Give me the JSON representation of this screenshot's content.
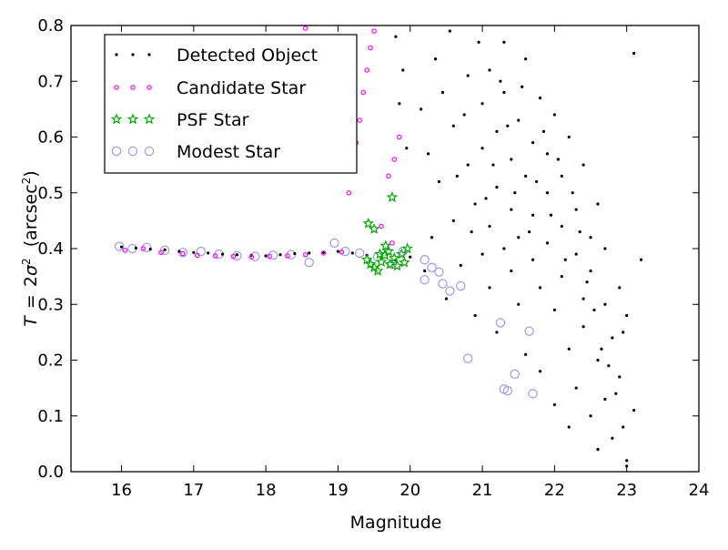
{
  "chart_data": {
    "type": "scatter",
    "title": "",
    "xlabel": "Magnitude",
    "ylabel": "T = 2σ² (arcsec²)",
    "ylabel_parts": {
      "lhs": "T",
      "eq": "=",
      "coef": "2",
      "sym": "σ",
      "sup": "2",
      "unit": "(arcsec",
      "unit_sup": "2",
      "unit_close": ")"
    },
    "xlim": [
      15.3,
      24
    ],
    "ylim": [
      0,
      0.8
    ],
    "x_ticks": [
      "16",
      "17",
      "18",
      "19",
      "20",
      "21",
      "22",
      "23",
      "24"
    ],
    "y_ticks": [
      "0.0",
      "0.1",
      "0.2",
      "0.3",
      "0.4",
      "0.5",
      "0.6",
      "0.7",
      "0.8"
    ],
    "grid": false,
    "legend_position": "top-left",
    "series": [
      {
        "name": "Detected Object",
        "marker": "dot",
        "color": "#000000",
        "points_note": "dense cloud",
        "points": [
          [
            16.0,
            0.403
          ],
          [
            16.2,
            0.401
          ],
          [
            16.4,
            0.399
          ],
          [
            16.6,
            0.398
          ],
          [
            16.8,
            0.395
          ],
          [
            17.0,
            0.393
          ],
          [
            17.2,
            0.392
          ],
          [
            17.4,
            0.39
          ],
          [
            17.6,
            0.389
          ],
          [
            17.8,
            0.388
          ],
          [
            18.0,
            0.387
          ],
          [
            18.2,
            0.389
          ],
          [
            18.4,
            0.391
          ],
          [
            18.6,
            0.392
          ],
          [
            18.8,
            0.393
          ],
          [
            19.0,
            0.395
          ],
          [
            19.2,
            0.392
          ],
          [
            19.4,
            0.388
          ],
          [
            19.6,
            0.383
          ],
          [
            19.8,
            0.379
          ],
          [
            20.0,
            0.385
          ],
          [
            20.2,
            0.36
          ],
          [
            20.3,
            0.42
          ],
          [
            20.4,
            0.52
          ],
          [
            20.5,
            0.31
          ],
          [
            20.6,
            0.45
          ],
          [
            20.6,
            0.62
          ],
          [
            20.7,
            0.37
          ],
          [
            20.8,
            0.55
          ],
          [
            20.8,
            0.71
          ],
          [
            20.9,
            0.28
          ],
          [
            20.9,
            0.48
          ],
          [
            21.0,
            0.39
          ],
          [
            21.0,
            0.58
          ],
          [
            21.0,
            0.66
          ],
          [
            21.1,
            0.33
          ],
          [
            21.1,
            0.44
          ],
          [
            21.1,
            0.72
          ],
          [
            21.2,
            0.51
          ],
          [
            21.2,
            0.61
          ],
          [
            21.2,
            0.25
          ],
          [
            21.3,
            0.4
          ],
          [
            21.3,
            0.68
          ],
          [
            21.3,
            0.77
          ],
          [
            21.4,
            0.36
          ],
          [
            21.4,
            0.47
          ],
          [
            21.4,
            0.56
          ],
          [
            21.5,
            0.3
          ],
          [
            21.5,
            0.63
          ],
          [
            21.5,
            0.42
          ],
          [
            21.6,
            0.53
          ],
          [
            21.6,
            0.74
          ],
          [
            21.6,
            0.21
          ],
          [
            21.7,
            0.38
          ],
          [
            21.7,
            0.59
          ],
          [
            21.7,
            0.46
          ],
          [
            21.8,
            0.33
          ],
          [
            21.8,
            0.67
          ],
          [
            21.8,
            0.18
          ],
          [
            21.9,
            0.5
          ],
          [
            21.9,
            0.41
          ],
          [
            21.9,
            0.57
          ],
          [
            22.0,
            0.29
          ],
          [
            22.0,
            0.64
          ],
          [
            22.0,
            0.12
          ],
          [
            22.1,
            0.44
          ],
          [
            22.1,
            0.35
          ],
          [
            22.1,
            0.53
          ],
          [
            22.2,
            0.22
          ],
          [
            22.2,
            0.6
          ],
          [
            22.2,
            0.08
          ],
          [
            22.3,
            0.39
          ],
          [
            22.3,
            0.47
          ],
          [
            22.3,
            0.15
          ],
          [
            22.4,
            0.31
          ],
          [
            22.4,
            0.55
          ],
          [
            22.4,
            0.26
          ],
          [
            22.5,
            0.42
          ],
          [
            22.5,
            0.1
          ],
          [
            22.5,
            0.36
          ],
          [
            22.6,
            0.2
          ],
          [
            22.6,
            0.48
          ],
          [
            22.6,
            0.04
          ],
          [
            22.7,
            0.3
          ],
          [
            22.7,
            0.13
          ],
          [
            22.7,
            0.4
          ],
          [
            22.8,
            0.24
          ],
          [
            22.8,
            0.06
          ],
          [
            22.9,
            0.17
          ],
          [
            22.9,
            0.33
          ],
          [
            23.0,
            0.02
          ],
          [
            23.0,
            0.28
          ],
          [
            23.1,
            0.11
          ],
          [
            23.1,
            0.75
          ],
          [
            23.2,
            0.38
          ],
          [
            23.0,
            0.01
          ],
          [
            22.95,
            0.08
          ],
          [
            20.15,
            0.65
          ],
          [
            20.25,
            0.57
          ],
          [
            20.35,
            0.74
          ],
          [
            20.45,
            0.68
          ],
          [
            20.55,
            0.79
          ],
          [
            20.65,
            0.53
          ],
          [
            20.75,
            0.64
          ],
          [
            20.85,
            0.43
          ],
          [
            20.95,
            0.77
          ],
          [
            21.05,
            0.49
          ],
          [
            21.15,
            0.55
          ],
          [
            21.25,
            0.7
          ],
          [
            21.35,
            0.62
          ],
          [
            21.45,
            0.5
          ],
          [
            21.55,
            0.69
          ],
          [
            21.65,
            0.43
          ],
          [
            21.75,
            0.52
          ],
          [
            21.85,
            0.61
          ],
          [
            21.95,
            0.46
          ],
          [
            22.05,
            0.56
          ],
          [
            22.15,
            0.38
          ],
          [
            22.25,
            0.5
          ],
          [
            22.35,
            0.43
          ],
          [
            22.45,
            0.34
          ],
          [
            22.55,
            0.29
          ],
          [
            22.65,
            0.22
          ],
          [
            22.75,
            0.19
          ],
          [
            22.85,
            0.14
          ],
          [
            22.95,
            0.25
          ],
          [
            19.95,
            0.58
          ],
          [
            19.9,
            0.72
          ],
          [
            19.85,
            0.66
          ],
          [
            19.8,
            0.78
          ]
        ]
      },
      {
        "name": "Candidate Star",
        "marker": "ring-small",
        "color": "#ff00ff",
        "points": [
          [
            16.05,
            0.397
          ],
          [
            16.3,
            0.4
          ],
          [
            16.55,
            0.393
          ],
          [
            16.85,
            0.391
          ],
          [
            17.05,
            0.388
          ],
          [
            17.3,
            0.387
          ],
          [
            17.55,
            0.386
          ],
          [
            17.8,
            0.385
          ],
          [
            18.05,
            0.386
          ],
          [
            18.3,
            0.387
          ],
          [
            18.55,
            0.389
          ],
          [
            18.8,
            0.392
          ],
          [
            19.05,
            0.394
          ],
          [
            19.2,
            0.54
          ],
          [
            19.25,
            0.59
          ],
          [
            19.3,
            0.63
          ],
          [
            19.35,
            0.68
          ],
          [
            19.4,
            0.72
          ],
          [
            19.45,
            0.76
          ],
          [
            19.5,
            0.79
          ],
          [
            18.55,
            0.795
          ],
          [
            19.15,
            0.5
          ],
          [
            19.7,
            0.53
          ],
          [
            19.78,
            0.56
          ],
          [
            19.85,
            0.6
          ],
          [
            19.6,
            0.44
          ],
          [
            19.75,
            0.41
          ]
        ]
      },
      {
        "name": "PSF Star",
        "marker": "star",
        "color": "#00aa00",
        "points": [
          [
            19.4,
            0.38
          ],
          [
            19.45,
            0.372
          ],
          [
            19.5,
            0.366
          ],
          [
            19.55,
            0.36
          ],
          [
            19.6,
            0.376
          ],
          [
            19.65,
            0.388
          ],
          [
            19.7,
            0.395
          ],
          [
            19.72,
            0.372
          ],
          [
            19.78,
            0.383
          ],
          [
            19.82,
            0.369
          ],
          [
            19.88,
            0.39
          ],
          [
            19.92,
            0.375
          ],
          [
            19.96,
            0.4
          ],
          [
            19.42,
            0.445
          ],
          [
            19.5,
            0.435
          ],
          [
            19.75,
            0.492
          ],
          [
            19.66,
            0.405
          ],
          [
            19.58,
            0.39
          ]
        ]
      },
      {
        "name": "Modest Star",
        "marker": "ring-large",
        "color": "#9a9aee",
        "points": [
          [
            15.97,
            0.404
          ],
          [
            16.15,
            0.4
          ],
          [
            16.35,
            0.402
          ],
          [
            16.6,
            0.397
          ],
          [
            16.85,
            0.393
          ],
          [
            17.1,
            0.395
          ],
          [
            17.35,
            0.39
          ],
          [
            17.6,
            0.387
          ],
          [
            17.85,
            0.386
          ],
          [
            18.1,
            0.388
          ],
          [
            18.35,
            0.389
          ],
          [
            18.6,
            0.375
          ],
          [
            18.95,
            0.41
          ],
          [
            19.1,
            0.395
          ],
          [
            19.3,
            0.392
          ],
          [
            19.55,
            0.385
          ],
          [
            19.75,
            0.372
          ],
          [
            19.9,
            0.395
          ],
          [
            20.2,
            0.38
          ],
          [
            20.3,
            0.366
          ],
          [
            20.4,
            0.358
          ],
          [
            20.2,
            0.344
          ],
          [
            20.45,
            0.337
          ],
          [
            20.55,
            0.324
          ],
          [
            20.7,
            0.333
          ],
          [
            21.25,
            0.267
          ],
          [
            21.65,
            0.252
          ],
          [
            20.8,
            0.203
          ],
          [
            21.45,
            0.175
          ],
          [
            21.35,
            0.145
          ],
          [
            21.3,
            0.148
          ],
          [
            21.7,
            0.14
          ]
        ]
      }
    ]
  }
}
